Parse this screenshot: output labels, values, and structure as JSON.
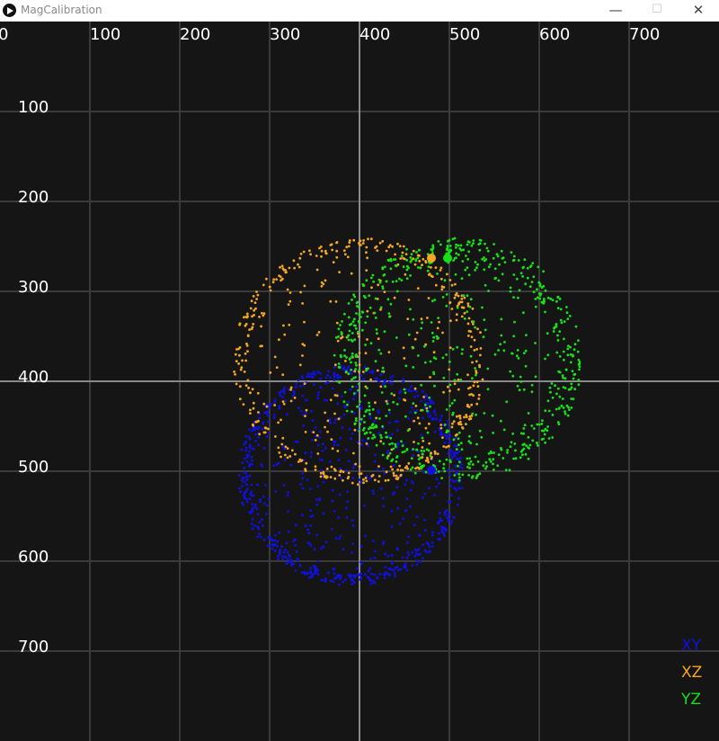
{
  "window": {
    "title": "MagCalibration",
    "controls": {
      "minimize": "—",
      "maximize": "☐",
      "close": "✕"
    }
  },
  "chart_data": {
    "type": "scatter",
    "title": "",
    "xlabel": "",
    "ylabel": "",
    "x_ticks": [
      "0",
      "100",
      "200",
      "300",
      "400",
      "500",
      "600",
      "700"
    ],
    "y_ticks": [
      "100",
      "200",
      "300",
      "400",
      "500",
      "600",
      "700"
    ],
    "xlim": [
      0,
      800
    ],
    "ylim": [
      0,
      800
    ],
    "grid": true,
    "crosshair": [
      400,
      400
    ],
    "legend_position": "bottom-right",
    "series": [
      {
        "name": "XY",
        "color": "#1010e0",
        "center": [
          390,
          505
        ],
        "radius": [
          110,
          125
        ],
        "count": 850
      },
      {
        "name": "XZ",
        "color": "#f5a623",
        "center": [
          400,
          378
        ],
        "radius": [
          125,
          140
        ],
        "count": 550
      },
      {
        "name": "YZ",
        "color": "#18e018",
        "center": [
          510,
          376
        ],
        "radius": [
          110,
          138
        ],
        "count": 750
      }
    ],
    "markers": [
      {
        "series": "XY",
        "x": 480,
        "y": 499
      },
      {
        "series": "XZ",
        "x": 480,
        "y": 263
      },
      {
        "series": "YZ",
        "x": 498,
        "y": 263
      }
    ]
  }
}
